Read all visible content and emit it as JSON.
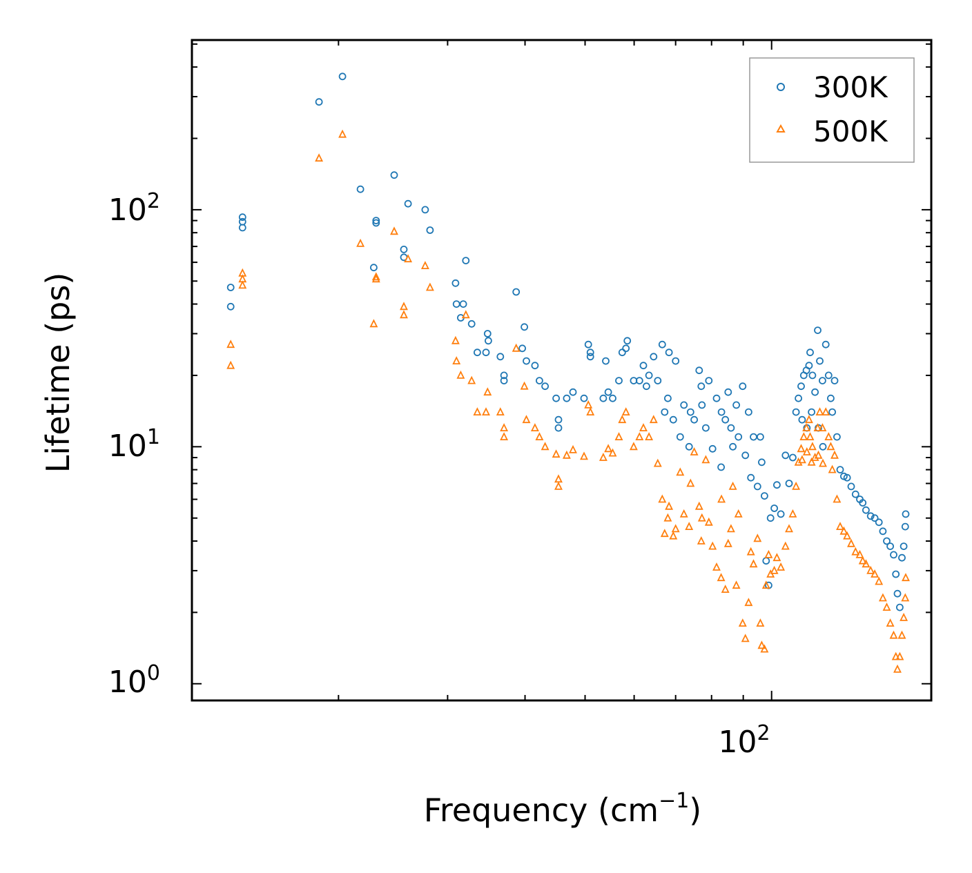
{
  "chart_data": {
    "type": "scatter",
    "title": "",
    "xlabel": "Frequency (cm",
    "xlabel_sup": "−1",
    "xlabel_suffix": ")",
    "ylabel": "Lifetime (ps)",
    "xscale": "log",
    "yscale": "log",
    "xlim": [
      11.6,
      181
    ],
    "ylim": [
      0.85,
      520
    ],
    "x_ticks": [
      {
        "base": "10",
        "exp": "2",
        "value": 100
      }
    ],
    "y_ticks": [
      {
        "base": "10",
        "exp": "0",
        "value": 1
      },
      {
        "base": "10",
        "exp": "1",
        "value": 10
      },
      {
        "base": "10",
        "exp": "2",
        "value": 100
      }
    ],
    "legend_position": "top-right",
    "series": [
      {
        "name": "300K",
        "marker": "circle",
        "color": "#1f77b4",
        "points": [
          [
            13.4,
            39
          ],
          [
            13.4,
            47
          ],
          [
            14.0,
            84
          ],
          [
            14.0,
            89
          ],
          [
            14.0,
            93
          ],
          [
            18.6,
            285
          ],
          [
            20.3,
            365
          ],
          [
            21.7,
            122
          ],
          [
            22.8,
            57
          ],
          [
            23.0,
            88
          ],
          [
            23.0,
            90
          ],
          [
            24.6,
            140
          ],
          [
            25.5,
            63
          ],
          [
            25.5,
            68
          ],
          [
            25.9,
            106
          ],
          [
            27.6,
            100
          ],
          [
            28.1,
            82
          ],
          [
            30.9,
            49
          ],
          [
            31.0,
            40
          ],
          [
            31.5,
            35
          ],
          [
            31.8,
            40
          ],
          [
            32.1,
            61
          ],
          [
            32.8,
            33
          ],
          [
            33.5,
            25
          ],
          [
            34.6,
            25
          ],
          [
            34.8,
            30
          ],
          [
            34.9,
            28
          ],
          [
            36.5,
            24
          ],
          [
            37.0,
            19
          ],
          [
            37.0,
            20
          ],
          [
            38.7,
            45
          ],
          [
            39.9,
            32
          ],
          [
            39.6,
            26
          ],
          [
            40.2,
            23
          ],
          [
            41.5,
            22
          ],
          [
            42.2,
            19
          ],
          [
            43.1,
            18
          ],
          [
            44.9,
            16
          ],
          [
            45.3,
            13
          ],
          [
            45.3,
            12
          ],
          [
            46.7,
            16
          ],
          [
            47.8,
            17
          ],
          [
            49.8,
            16
          ],
          [
            50.6,
            27
          ],
          [
            51.0,
            24
          ],
          [
            51.0,
            25
          ],
          [
            53.5,
            16
          ],
          [
            54.0,
            23
          ],
          [
            54.5,
            17
          ],
          [
            55.4,
            16
          ],
          [
            56.7,
            19
          ],
          [
            57.4,
            25
          ],
          [
            58.2,
            26
          ],
          [
            58.5,
            28
          ],
          [
            59.9,
            19
          ],
          [
            61.2,
            19
          ],
          [
            62.1,
            22
          ],
          [
            62.8,
            18
          ],
          [
            63.4,
            20
          ],
          [
            64.5,
            24
          ],
          [
            65.5,
            19
          ],
          [
            66.6,
            27
          ],
          [
            67.2,
            14
          ],
          [
            68.3,
            25
          ],
          [
            69.4,
            13
          ],
          [
            70.0,
            23
          ],
          [
            71.2,
            11
          ],
          [
            72.2,
            15
          ],
          [
            73.6,
            10
          ],
          [
            75.0,
            13
          ],
          [
            76.4,
            21
          ],
          [
            77.2,
            15
          ],
          [
            78.3,
            12
          ],
          [
            79.2,
            19
          ],
          [
            80.3,
            9.8
          ],
          [
            81.5,
            16
          ],
          [
            82.9,
            8.2
          ],
          [
            84.2,
            13
          ],
          [
            85.1,
            17
          ],
          [
            86.6,
            10
          ],
          [
            87.7,
            15
          ],
          [
            88.4,
            11
          ],
          [
            89.8,
            18
          ],
          [
            90.7,
            9.2
          ],
          [
            91.8,
            14
          ],
          [
            92.6,
            7.4
          ],
          [
            93.5,
            11
          ],
          [
            94.9,
            6.8
          ],
          [
            95.9,
            11
          ],
          [
            96.4,
            8.6
          ],
          [
            97.4,
            6.2
          ],
          [
            98.0,
            3.3
          ],
          [
            98.9,
            2.6
          ],
          [
            99.6,
            5.0
          ],
          [
            101.0,
            5.5
          ],
          [
            102.0,
            6.9
          ],
          [
            103.5,
            5.2
          ],
          [
            105.3,
            9.2
          ],
          [
            106.7,
            7.0
          ],
          [
            108.2,
            9.0
          ],
          [
            109.5,
            14
          ],
          [
            110.5,
            16
          ],
          [
            111.6,
            18
          ],
          [
            112.7,
            20
          ],
          [
            113.8,
            21
          ],
          [
            114.9,
            22
          ],
          [
            115.4,
            25
          ],
          [
            116.4,
            20
          ],
          [
            117.5,
            17
          ],
          [
            118.7,
            31
          ],
          [
            119.6,
            23
          ],
          [
            120.8,
            19
          ],
          [
            122.3,
            27
          ],
          [
            123.6,
            20
          ],
          [
            124.6,
            16
          ],
          [
            125.3,
            14
          ],
          [
            126.4,
            19
          ],
          [
            127.5,
            11
          ],
          [
            129.0,
            8.0
          ],
          [
            130.8,
            7.5
          ],
          [
            132.4,
            7.4
          ],
          [
            134.4,
            6.8
          ],
          [
            136.6,
            6.3
          ],
          [
            138.8,
            6.0
          ],
          [
            140.3,
            5.8
          ],
          [
            142.0,
            5.4
          ],
          [
            144.5,
            5.1
          ],
          [
            146.7,
            5.0
          ],
          [
            149.0,
            4.8
          ],
          [
            151.2,
            4.4
          ],
          [
            153.4,
            4.0
          ],
          [
            155.4,
            3.8
          ],
          [
            157.4,
            3.5
          ],
          [
            158.7,
            2.9
          ],
          [
            159.6,
            2.4
          ],
          [
            161.0,
            2.1
          ],
          [
            162.3,
            3.4
          ],
          [
            163.4,
            3.8
          ],
          [
            164.3,
            4.6
          ],
          [
            164.6,
            5.2
          ],
          [
            114.0,
            12
          ],
          [
            116.0,
            14
          ],
          [
            119.0,
            12
          ],
          [
            121.0,
            10
          ],
          [
            112.0,
            13
          ],
          [
            68.0,
            16
          ],
          [
            74.0,
            14
          ],
          [
            77.0,
            18
          ],
          [
            83.0,
            14
          ],
          [
            86.0,
            12
          ]
        ]
      },
      {
        "name": "500K",
        "marker": "triangle",
        "color": "#ff7f0e",
        "points": [
          [
            13.4,
            22
          ],
          [
            13.4,
            27
          ],
          [
            14.0,
            48
          ],
          [
            14.0,
            51
          ],
          [
            14.0,
            54
          ],
          [
            18.6,
            165
          ],
          [
            20.3,
            208
          ],
          [
            21.7,
            72
          ],
          [
            22.8,
            33
          ],
          [
            23.0,
            51
          ],
          [
            23.0,
            52
          ],
          [
            24.6,
            81
          ],
          [
            25.5,
            36
          ],
          [
            25.5,
            39
          ],
          [
            25.9,
            62
          ],
          [
            27.6,
            58
          ],
          [
            28.1,
            47
          ],
          [
            30.9,
            28
          ],
          [
            31.0,
            23
          ],
          [
            31.5,
            20
          ],
          [
            32.1,
            36
          ],
          [
            32.8,
            19
          ],
          [
            33.5,
            14
          ],
          [
            34.6,
            14
          ],
          [
            34.8,
            17
          ],
          [
            36.5,
            14
          ],
          [
            37.0,
            11
          ],
          [
            37.0,
            12
          ],
          [
            38.7,
            26
          ],
          [
            39.9,
            18
          ],
          [
            40.2,
            13
          ],
          [
            41.5,
            12
          ],
          [
            42.2,
            11
          ],
          [
            43.1,
            10
          ],
          [
            44.9,
            9.3
          ],
          [
            45.3,
            7.3
          ],
          [
            45.3,
            6.8
          ],
          [
            46.7,
            9.2
          ],
          [
            47.8,
            9.7
          ],
          [
            49.8,
            9.1
          ],
          [
            50.6,
            15
          ],
          [
            51.0,
            14
          ],
          [
            53.5,
            9.0
          ],
          [
            54.5,
            9.8
          ],
          [
            55.4,
            9.4
          ],
          [
            56.7,
            11
          ],
          [
            57.4,
            13
          ],
          [
            58.2,
            14
          ],
          [
            59.9,
            10
          ],
          [
            61.2,
            11
          ],
          [
            62.1,
            12
          ],
          [
            63.4,
            11
          ],
          [
            64.5,
            13
          ],
          [
            65.5,
            8.5
          ],
          [
            66.6,
            6.0
          ],
          [
            67.2,
            4.3
          ],
          [
            68.3,
            5.6
          ],
          [
            69.4,
            4.2
          ],
          [
            70.0,
            4.5
          ],
          [
            71.2,
            7.8
          ],
          [
            72.2,
            5.2
          ],
          [
            73.6,
            4.6
          ],
          [
            75.0,
            9.5
          ],
          [
            76.4,
            5.6
          ],
          [
            77.2,
            5.0
          ],
          [
            78.3,
            8.8
          ],
          [
            79.2,
            4.8
          ],
          [
            80.3,
            3.8
          ],
          [
            81.5,
            3.1
          ],
          [
            82.9,
            2.8
          ],
          [
            84.2,
            2.5
          ],
          [
            85.1,
            3.9
          ],
          [
            86.6,
            6.8
          ],
          [
            87.7,
            2.6
          ],
          [
            88.4,
            5.2
          ],
          [
            89.8,
            1.8
          ],
          [
            90.7,
            1.55
          ],
          [
            91.8,
            2.2
          ],
          [
            92.6,
            3.6
          ],
          [
            93.5,
            3.2
          ],
          [
            94.9,
            4.1
          ],
          [
            95.9,
            1.8
          ],
          [
            96.4,
            1.45
          ],
          [
            97.4,
            1.4
          ],
          [
            98.0,
            2.6
          ],
          [
            98.9,
            3.5
          ],
          [
            99.6,
            2.9
          ],
          [
            101.0,
            3.0
          ],
          [
            102.0,
            3.4
          ],
          [
            103.5,
            3.1
          ],
          [
            105.3,
            3.8
          ],
          [
            106.7,
            4.5
          ],
          [
            108.2,
            5.2
          ],
          [
            109.5,
            6.8
          ],
          [
            110.5,
            8.6
          ],
          [
            111.6,
            9.8
          ],
          [
            112.7,
            11
          ],
          [
            113.8,
            12
          ],
          [
            114.9,
            13
          ],
          [
            115.4,
            11
          ],
          [
            116.4,
            10
          ],
          [
            117.5,
            9
          ],
          [
            118.7,
            12
          ],
          [
            119.6,
            14
          ],
          [
            120.8,
            12
          ],
          [
            122.3,
            14
          ],
          [
            123.6,
            11
          ],
          [
            124.6,
            10
          ],
          [
            125.3,
            8.0
          ],
          [
            126.4,
            9.2
          ],
          [
            127.5,
            6.0
          ],
          [
            129.0,
            4.6
          ],
          [
            130.8,
            4.4
          ],
          [
            132.4,
            4.2
          ],
          [
            134.4,
            3.9
          ],
          [
            136.6,
            3.6
          ],
          [
            138.8,
            3.5
          ],
          [
            140.3,
            3.3
          ],
          [
            142.0,
            3.2
          ],
          [
            144.5,
            3.0
          ],
          [
            146.7,
            2.9
          ],
          [
            149.0,
            2.7
          ],
          [
            151.2,
            2.3
          ],
          [
            153.4,
            2.1
          ],
          [
            155.4,
            1.8
          ],
          [
            157.4,
            1.6
          ],
          [
            158.7,
            1.3
          ],
          [
            159.6,
            1.15
          ],
          [
            161.0,
            1.3
          ],
          [
            162.3,
            1.6
          ],
          [
            163.4,
            1.9
          ],
          [
            164.3,
            2.3
          ],
          [
            164.6,
            2.8
          ],
          [
            114.0,
            9.5
          ],
          [
            116.0,
            8.6
          ],
          [
            119.0,
            9.2
          ],
          [
            121.0,
            8.5
          ],
          [
            112.0,
            8.8
          ],
          [
            68.0,
            5.0
          ],
          [
            74.0,
            7.0
          ],
          [
            77.0,
            4.0
          ],
          [
            83.0,
            6.0
          ],
          [
            86.0,
            4.5
          ]
        ]
      }
    ]
  }
}
